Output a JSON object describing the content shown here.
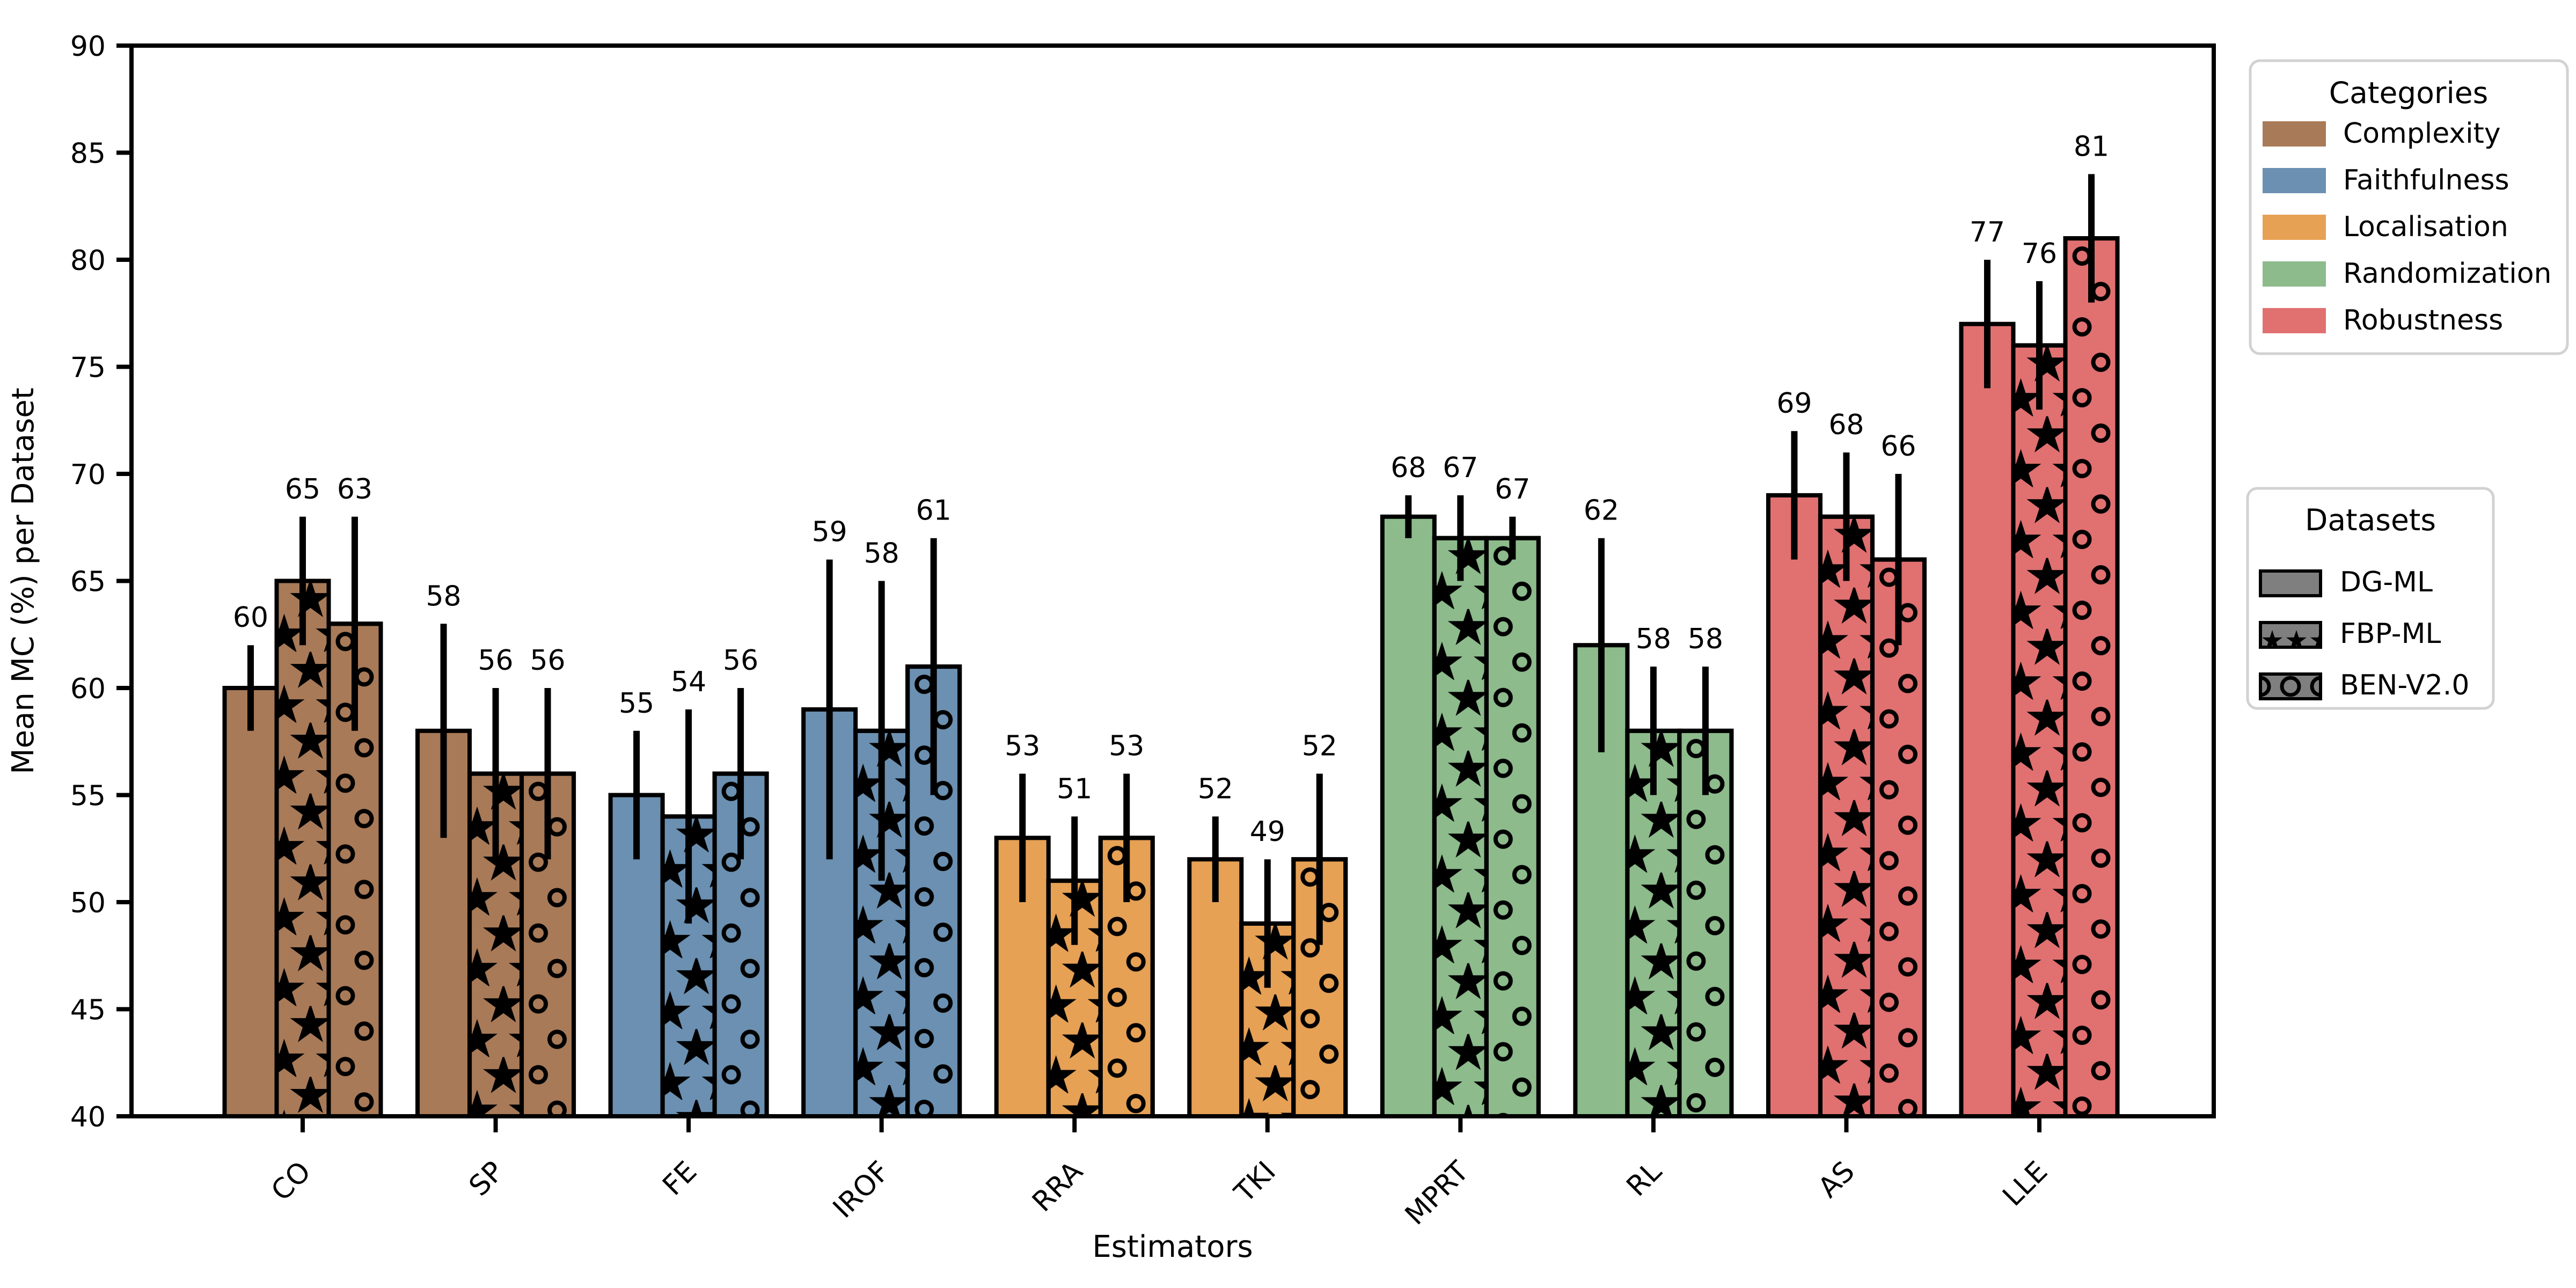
{
  "chart_data": {
    "type": "bar",
    "title": "",
    "xlabel": "Estimators",
    "ylabel": "Mean MC (%) per Dataset",
    "ylim": [
      40,
      90
    ],
    "yticks": [
      40,
      45,
      50,
      55,
      60,
      65,
      70,
      75,
      80,
      85,
      90
    ],
    "grid": "off",
    "categories": [
      "CO",
      "SP",
      "FE",
      "IROF",
      "RRA",
      "TKI",
      "MPRT",
      "RL",
      "AS",
      "LLE"
    ],
    "estimator_categories": [
      "Complexity",
      "Complexity",
      "Faithfulness",
      "Faithfulness",
      "Localisation",
      "Localisation",
      "Randomization",
      "Randomization",
      "Robustness",
      "Robustness"
    ],
    "category_colors": {
      "Complexity": "#a87a58",
      "Faithfulness": "#6b90b1",
      "Localisation": "#e6a155",
      "Randomization": "#8dbb8c",
      "Robustness": "#e17070"
    },
    "series": [
      {
        "name": "DG-ML",
        "hatch": "none",
        "values": [
          60,
          58,
          55,
          59,
          53,
          52,
          68,
          62,
          69,
          77
        ],
        "errors": [
          2,
          5,
          3,
          7,
          3,
          2,
          1,
          5,
          3,
          3
        ]
      },
      {
        "name": "FBP-ML",
        "hatch": "star",
        "values": [
          65,
          56,
          54,
          58,
          51,
          49,
          67,
          58,
          68,
          76
        ],
        "errors": [
          3,
          4,
          5,
          7,
          3,
          3,
          2,
          3,
          3,
          3
        ]
      },
      {
        "name": "BEN-V2.0",
        "hatch": "circle",
        "values": [
          63,
          56,
          56,
          61,
          53,
          52,
          67,
          58,
          66,
          81
        ],
        "errors": [
          5,
          4,
          4,
          6,
          3,
          4,
          1,
          3,
          4,
          3
        ]
      }
    ],
    "legend_categories": {
      "title": "Categories",
      "entries": [
        "Complexity",
        "Faithfulness",
        "Localisation",
        "Randomization",
        "Robustness"
      ]
    },
    "legend_datasets": {
      "title": "Datasets",
      "entries": [
        {
          "label": "DG-ML",
          "hatch": "none"
        },
        {
          "label": "FBP-ML",
          "hatch": "star"
        },
        {
          "label": "BEN-V2.0",
          "hatch": "circle"
        }
      ],
      "patch_color": "#7f7f7f"
    },
    "bar_edge_color": "#000000",
    "error_bar_color": "#000000",
    "hatch_color": "#000000",
    "background": "#ffffff"
  }
}
